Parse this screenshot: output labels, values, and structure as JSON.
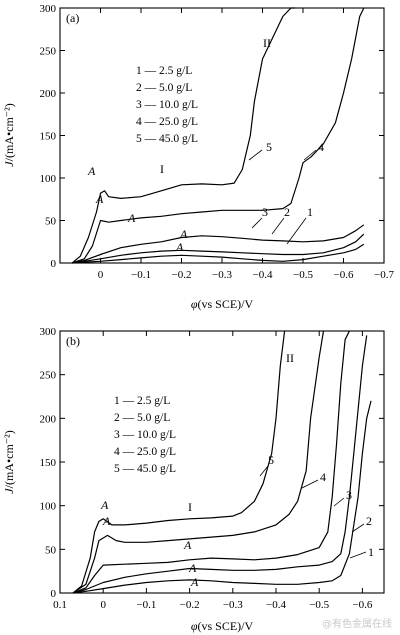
{
  "watermark": "@有色金属在线",
  "chart_data": [
    {
      "type": "line",
      "panel_label": "(a)",
      "xlabel_symbol": "φ",
      "xlabel": "(vs SCE)/V",
      "ylabel_symbol": "J",
      "ylabel": "/(mA•cm⁻²)",
      "x_reversed": true,
      "xlim": [
        0.1,
        -0.7
      ],
      "ylim": [
        0,
        300
      ],
      "xticks": [
        0,
        -0.1,
        -0.2,
        -0.3,
        -0.4,
        -0.5,
        -0.6,
        -0.7
      ],
      "xtick_labels": [
        "0",
        "−0.1",
        "−0.2",
        "−0.3",
        "−0.4",
        "−0.5",
        "−0.6",
        "−0.7"
      ],
      "yticks": [
        0,
        50,
        100,
        150,
        200,
        250,
        300
      ],
      "legend": [
        "1 — 2.5 g/L",
        "2 — 5.0 g/L",
        "3 — 10.0 g/L",
        "4 — 25.0 g/L",
        "5 — 45.0 g/L"
      ],
      "series": [
        {
          "name": "1",
          "x": [
            0.07,
            0.04,
            0.0,
            -0.05,
            -0.1,
            -0.15,
            -0.2,
            -0.25,
            -0.3,
            -0.35,
            -0.4,
            -0.45,
            -0.5,
            -0.55,
            -0.6,
            -0.63,
            -0.65
          ],
          "y": [
            0,
            1,
            2,
            4,
            6,
            8,
            9,
            8,
            7,
            5,
            3,
            2,
            4,
            8,
            12,
            16,
            22
          ]
        },
        {
          "name": "2",
          "x": [
            0.07,
            0.04,
            0.0,
            -0.05,
            -0.1,
            -0.15,
            -0.2,
            -0.25,
            -0.3,
            -0.35,
            -0.4,
            -0.45,
            -0.5,
            -0.55,
            -0.6,
            -0.63,
            -0.65
          ],
          "y": [
            0,
            2,
            5,
            9,
            12,
            14,
            15,
            14,
            13,
            12,
            11,
            10,
            10,
            12,
            18,
            25,
            34
          ]
        },
        {
          "name": "3",
          "x": [
            0.07,
            0.04,
            0.0,
            -0.05,
            -0.1,
            -0.15,
            -0.2,
            -0.25,
            -0.3,
            -0.35,
            -0.4,
            -0.45,
            -0.5,
            -0.55,
            -0.6,
            -0.63,
            -0.65
          ],
          "y": [
            0,
            3,
            10,
            18,
            22,
            25,
            30,
            32,
            31,
            29,
            27,
            26,
            25,
            26,
            30,
            38,
            45
          ]
        },
        {
          "name": "4",
          "x": [
            0.07,
            0.04,
            0.02,
            0.0,
            -0.02,
            -0.05,
            -0.1,
            -0.15,
            -0.2,
            -0.25,
            -0.3,
            -0.35,
            -0.4,
            -0.45,
            -0.47,
            -0.49,
            -0.5,
            -0.52,
            -0.55,
            -0.58,
            -0.6,
            -0.62,
            -0.64,
            -0.65
          ],
          "y": [
            0,
            5,
            20,
            50,
            48,
            50,
            53,
            55,
            58,
            60,
            62,
            62,
            62,
            64,
            70,
            100,
            118,
            125,
            140,
            165,
            200,
            240,
            290,
            300
          ]
        },
        {
          "name": "5",
          "x": [
            0.07,
            0.05,
            0.03,
            0.01,
            0.0,
            -0.01,
            -0.02,
            -0.05,
            -0.1,
            -0.15,
            -0.2,
            -0.25,
            -0.3,
            -0.33,
            -0.35,
            -0.37,
            -0.38,
            -0.4,
            -0.43,
            -0.45,
            -0.47,
            -0.48
          ],
          "y": [
            0,
            8,
            30,
            60,
            82,
            85,
            78,
            76,
            78,
            85,
            92,
            93,
            92,
            94,
            110,
            150,
            190,
            240,
            270,
            290,
            300,
            300
          ]
        }
      ],
      "curve_labels": [
        "1",
        "2",
        "3",
        "4",
        "5"
      ],
      "region_labels": [
        "I",
        "II"
      ],
      "peak_label": "A"
    },
    {
      "type": "line",
      "panel_label": "(b)",
      "xlabel_symbol": "φ",
      "xlabel": "(vs SCE)/V",
      "ylabel_symbol": "J",
      "ylabel": "/(mA•cm⁻²)",
      "x_reversed": true,
      "xlim": [
        0.1,
        -0.65
      ],
      "ylim": [
        0,
        300
      ],
      "xticks": [
        0.1,
        0,
        -0.1,
        -0.2,
        -0.3,
        -0.4,
        -0.5,
        -0.6
      ],
      "xtick_labels": [
        "0.1",
        "0",
        "−0.1",
        "−0.2",
        "−0.3",
        "−0.4",
        "−0.5",
        "−0.6"
      ],
      "yticks": [
        0,
        50,
        100,
        150,
        200,
        250,
        300
      ],
      "legend": [
        "1 — 2.5 g/L",
        "2 — 5.0 g/L",
        "3 — 10.0 g/L",
        "4 — 25.0 g/L",
        "5 — 45.0 g/L"
      ],
      "series": [
        {
          "name": "1",
          "x": [
            0.07,
            0.04,
            0.0,
            -0.05,
            -0.1,
            -0.15,
            -0.2,
            -0.25,
            -0.3,
            -0.35,
            -0.4,
            -0.45,
            -0.5,
            -0.53,
            -0.55,
            -0.57,
            -0.59,
            -0.6,
            -0.61,
            -0.62
          ],
          "y": [
            0,
            2,
            5,
            9,
            12,
            14,
            15,
            14,
            12,
            11,
            10,
            10,
            12,
            14,
            20,
            45,
            110,
            160,
            200,
            220
          ]
        },
        {
          "name": "2",
          "x": [
            0.07,
            0.04,
            0.0,
            -0.05,
            -0.1,
            -0.15,
            -0.2,
            -0.25,
            -0.3,
            -0.35,
            -0.4,
            -0.45,
            -0.5,
            -0.53,
            -0.55,
            -0.56,
            -0.57,
            -0.58,
            -0.59,
            -0.6,
            -0.61
          ],
          "y": [
            0,
            4,
            12,
            18,
            22,
            25,
            28,
            27,
            26,
            26,
            27,
            30,
            32,
            36,
            45,
            70,
            110,
            160,
            210,
            260,
            295
          ]
        },
        {
          "name": "3",
          "x": [
            0.07,
            0.04,
            0.02,
            0.0,
            -0.05,
            -0.1,
            -0.15,
            -0.2,
            -0.25,
            -0.3,
            -0.35,
            -0.4,
            -0.45,
            -0.5,
            -0.52,
            -0.53,
            -0.54,
            -0.55,
            -0.56,
            -0.57
          ],
          "y": [
            0,
            6,
            20,
            32,
            33,
            34,
            35,
            38,
            40,
            39,
            38,
            40,
            44,
            52,
            70,
            110,
            170,
            240,
            290,
            300
          ]
        },
        {
          "name": "4",
          "x": [
            0.07,
            0.04,
            0.02,
            0.01,
            -0.01,
            -0.03,
            -0.05,
            -0.1,
            -0.15,
            -0.2,
            -0.25,
            -0.3,
            -0.35,
            -0.4,
            -0.43,
            -0.45,
            -0.47,
            -0.48,
            -0.5,
            -0.51
          ],
          "y": [
            0,
            10,
            40,
            60,
            66,
            60,
            58,
            58,
            60,
            62,
            64,
            66,
            70,
            78,
            90,
            105,
            140,
            200,
            270,
            300
          ]
        },
        {
          "name": "5",
          "x": [
            0.07,
            0.05,
            0.03,
            0.02,
            0.01,
            0.0,
            -0.02,
            -0.05,
            -0.1,
            -0.15,
            -0.2,
            -0.25,
            -0.3,
            -0.32,
            -0.35,
            -0.37,
            -0.39,
            -0.4,
            -0.41,
            -0.42
          ],
          "y": [
            0,
            8,
            40,
            70,
            82,
            85,
            78,
            78,
            80,
            83,
            85,
            86,
            88,
            92,
            105,
            125,
            160,
            200,
            260,
            300
          ]
        }
      ],
      "curve_labels": [
        "1",
        "2",
        "3",
        "4",
        "5"
      ],
      "region_labels": [
        "I",
        "II"
      ],
      "peak_label": "A"
    }
  ]
}
